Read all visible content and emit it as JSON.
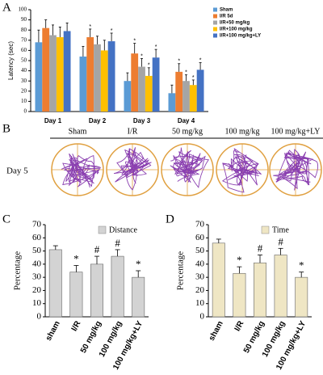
{
  "panels": [
    "A",
    "B",
    "C",
    "D"
  ],
  "track_panel": {
    "day": "Day 5",
    "groups": [
      "Sham",
      "I/R",
      "50 mg/kg",
      "100 mg/kg",
      "100 mg/kg+LY"
    ]
  },
  "chart_data": [
    {
      "type": "grouped-bar",
      "y_label": "Latency (sec)",
      "categories": [
        "Day 1",
        "Day 2",
        "Day 3",
        "Day 4"
      ],
      "ylim": [
        0,
        100
      ],
      "yticks": [
        0,
        10,
        20,
        30,
        40,
        50,
        60,
        70,
        80,
        90,
        100
      ],
      "series": [
        {
          "name": "Sham",
          "color": "#5b9bd5",
          "values": [
            68,
            54,
            30,
            18
          ],
          "errors": [
            12,
            10,
            8,
            8
          ],
          "significance": [
            null,
            null,
            null,
            null
          ]
        },
        {
          "name": "I/R 5d",
          "color": "#ed7d31",
          "values": [
            82,
            73,
            57,
            39
          ],
          "errors": [
            8,
            8,
            10,
            8
          ],
          "significance": [
            null,
            "*",
            "*",
            "*"
          ]
        },
        {
          "name": "I/R+50 mg/kg",
          "color": "#a5a5a5",
          "values": [
            75,
            66,
            44,
            30
          ],
          "errors": [
            10,
            8,
            8,
            6
          ],
          "significance": [
            null,
            null,
            "*",
            "*"
          ]
        },
        {
          "name": "I/R+100 mg/kg",
          "color": "#ffc000",
          "values": [
            73,
            60,
            35,
            26
          ],
          "errors": [
            10,
            10,
            8,
            5
          ],
          "significance": [
            null,
            null,
            "*",
            "*"
          ]
        },
        {
          "name": "I/R+100 mg/kg+LY",
          "color": "#4472c4",
          "values": [
            79,
            69,
            53,
            41
          ],
          "errors": [
            8,
            8,
            8,
            7
          ],
          "significance": [
            null,
            "*",
            "*",
            "*"
          ]
        }
      ]
    },
    {
      "type": "bar",
      "y_label": "Percentage",
      "legend": "Distance",
      "color": "#d3d3d3",
      "categories": [
        "sham",
        "I/R",
        "50 mg/kg",
        "100 mg/kg",
        "100 mg/kg+LY"
      ],
      "values": [
        51,
        34,
        40,
        46,
        30
      ],
      "errors": [
        3,
        5,
        6,
        5,
        5
      ],
      "significance": [
        null,
        "*",
        "#",
        "#",
        "*"
      ],
      "ylim": [
        0,
        70
      ],
      "yticks": [
        0,
        10,
        20,
        30,
        40,
        50,
        60,
        70
      ]
    },
    {
      "type": "bar",
      "y_label": "Percentage",
      "legend": "Time",
      "color": "#efe6c4",
      "categories": [
        "sham",
        "I/R",
        "50 mg/kg",
        "100 mg/kg",
        "100 mg/kg+LY"
      ],
      "values": [
        56,
        33,
        41,
        47,
        30
      ],
      "errors": [
        3,
        5,
        6,
        5,
        4
      ],
      "significance": [
        null,
        "*",
        "#",
        "#",
        "*"
      ],
      "ylim": [
        0,
        70
      ],
      "yticks": [
        0,
        10,
        20,
        30,
        40,
        50,
        60,
        70
      ]
    }
  ]
}
